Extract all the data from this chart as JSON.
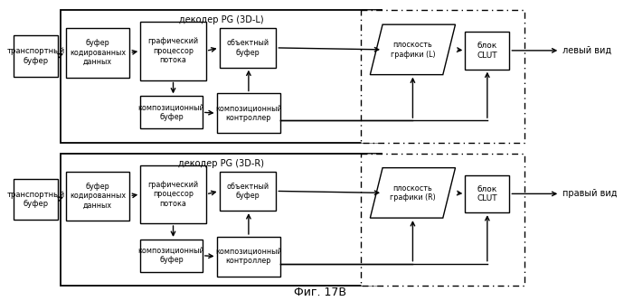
{
  "title": "Фиг. 17B",
  "bg_color": "#ffffff",
  "top_decoder_label": "декодер PG (3D-L)",
  "bottom_decoder_label": "декодер PG (3D-R)",
  "transport_buffer": "транспортный\nбуфер",
  "coded_data_buffer": "буфер\nкодированных\nданных",
  "graphics_processor": "графический\nпроцессор\nпотока",
  "object_buffer": "объектный\nбуфер",
  "composition_buffer": "композиционный\nбуфер",
  "composition_controller": "композиционный\nконтроллер",
  "graphics_plane_L": "плоскость\nграфики (L)",
  "graphics_plane_R": "плоскость\nграфики (R)",
  "clut_block": "блок\nCLUT",
  "left_view": "левый вид",
  "right_view": "правый вид"
}
